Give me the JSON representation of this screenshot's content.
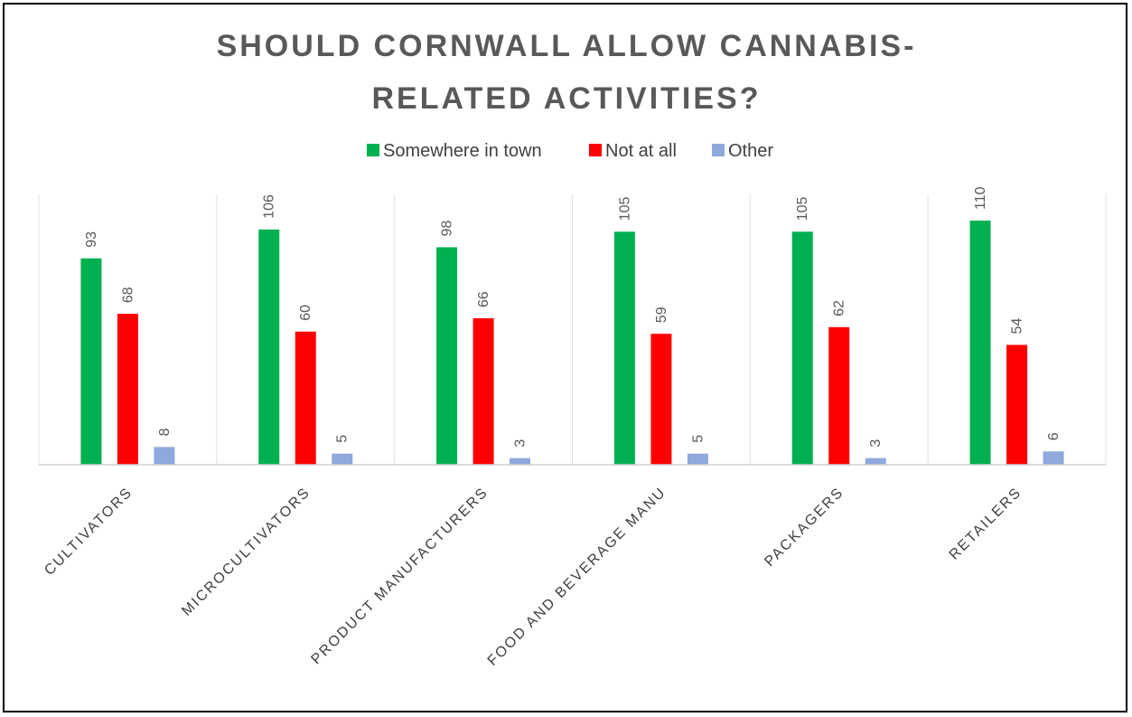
{
  "chart_data": {
    "type": "bar",
    "title_lines": [
      "SHOULD CORNWALL ALLOW CANNABIS-",
      "RELATED ACTIVITIES?"
    ],
    "categories": [
      "CULTIVATORS",
      "MICROCULTIVATORS",
      "PRODUCT MANUFACTURERS",
      "FOOD AND BEVERAGE MANU",
      "PACKAGERS",
      "RETAILERS"
    ],
    "series": [
      {
        "name": "Somewhere in town",
        "color": "#00B050",
        "values": [
          93,
          106,
          98,
          105,
          105,
          110
        ]
      },
      {
        "name": "Not at all",
        "color": "#FF0000",
        "values": [
          68,
          60,
          66,
          59,
          62,
          54
        ]
      },
      {
        "name": "Other",
        "color": "#8EA9DB",
        "values": [
          8,
          5,
          3,
          5,
          3,
          6
        ]
      }
    ],
    "xlabel": "",
    "ylabel": "",
    "ylim": [
      0,
      110
    ],
    "grid": false,
    "legend": "top",
    "data_labels": true
  }
}
